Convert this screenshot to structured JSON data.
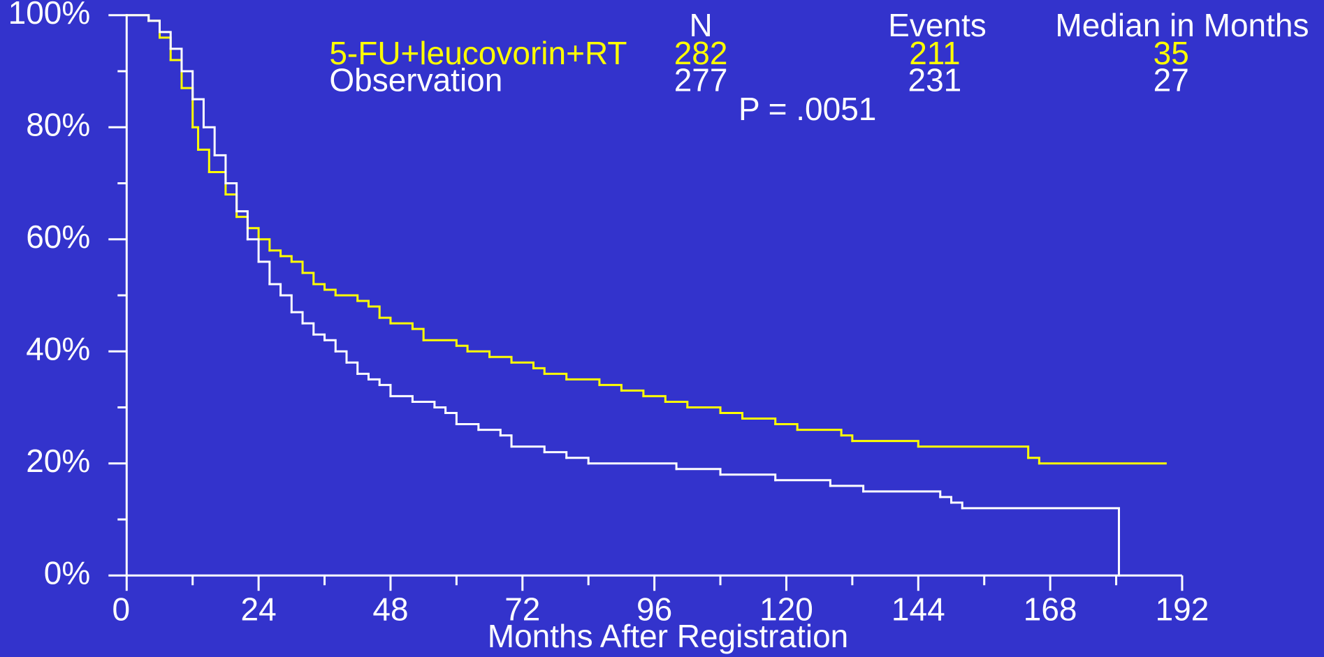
{
  "chart_data": {
    "type": "line",
    "step": true,
    "background": "#3333cc",
    "axis_color": "#ffffff",
    "xlabel": "Months After Registration",
    "xlim": [
      0,
      192
    ],
    "xticks": [
      0,
      24,
      48,
      72,
      96,
      120,
      144,
      168,
      192
    ],
    "xminorticks": [
      12,
      36,
      60,
      84,
      108,
      132,
      156,
      180
    ],
    "ylim": [
      0,
      100
    ],
    "yticks": [
      {
        "value": 0,
        "label": "0%"
      },
      {
        "value": 20,
        "label": "20%"
      },
      {
        "value": 40,
        "label": "40%"
      },
      {
        "value": 60,
        "label": "60%"
      },
      {
        "value": 80,
        "label": "80%"
      },
      {
        "value": 100,
        "label": "100%"
      }
    ],
    "yminorticks": [
      10,
      30,
      50,
      70,
      90
    ],
    "legend_columns": [
      "N",
      "Events",
      "Median in Months"
    ],
    "annotation": "P = .0051",
    "series": [
      {
        "name": "5-FU+leucovorin+RT",
        "color": "#ffff00",
        "n": 282,
        "events": 211,
        "median": 35,
        "x": [
          0,
          4,
          6,
          8,
          10,
          12,
          13,
          15,
          18,
          20,
          22,
          24,
          26,
          28,
          30,
          32,
          34,
          36,
          38,
          42,
          44,
          46,
          48,
          52,
          54,
          60,
          62,
          66,
          70,
          74,
          76,
          80,
          86,
          90,
          94,
          98,
          102,
          108,
          112,
          118,
          122,
          130,
          132,
          144,
          164,
          166,
          189
        ],
        "values": [
          100,
          99,
          96,
          92,
          87,
          80,
          76,
          72,
          68,
          64,
          62,
          60,
          58,
          57,
          56,
          54,
          52,
          51,
          50,
          49,
          48,
          46,
          45,
          44,
          42,
          41,
          40,
          39,
          38,
          37,
          36,
          35,
          34,
          33,
          32,
          31,
          30,
          29,
          28,
          27,
          26,
          25,
          24,
          23,
          21,
          20,
          20
        ]
      },
      {
        "name": "Observation",
        "color": "#ffffff",
        "n": 277,
        "events": 231,
        "median": 27,
        "x": [
          0,
          4,
          6,
          8,
          10,
          12,
          14,
          16,
          18,
          20,
          22,
          24,
          26,
          28,
          30,
          32,
          34,
          36,
          38,
          40,
          42,
          44,
          46,
          48,
          52,
          56,
          58,
          60,
          64,
          68,
          70,
          76,
          80,
          84,
          100,
          108,
          118,
          128,
          134,
          148,
          150,
          152,
          180.5
        ],
        "values": [
          100,
          99,
          97,
          94,
          90,
          85,
          80,
          75,
          70,
          65,
          60,
          56,
          52,
          50,
          47,
          45,
          43,
          42,
          40,
          38,
          36,
          35,
          34,
          32,
          31,
          30,
          29,
          27,
          26,
          25,
          23,
          22,
          21,
          20,
          19,
          18,
          17,
          16,
          15,
          14,
          13,
          12,
          0
        ]
      }
    ]
  }
}
